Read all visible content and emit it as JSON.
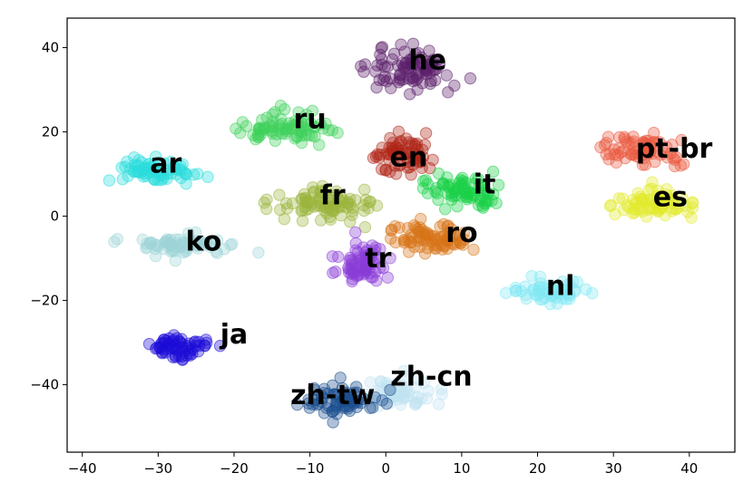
{
  "chart_data": {
    "type": "scatter",
    "title": "",
    "xlabel": "",
    "ylabel": "",
    "xlim": [
      -42,
      46
    ],
    "ylim": [
      -56,
      47
    ],
    "xticks": [
      -40,
      -30,
      -20,
      -10,
      0,
      10,
      20,
      30,
      40
    ],
    "yticks": [
      -40,
      -20,
      0,
      20,
      40
    ],
    "xtick_labels": [
      "−40",
      "−30",
      "−20",
      "−10",
      "0",
      "10",
      "20",
      "30",
      "40"
    ],
    "ytick_labels": [
      "−40",
      "−20",
      "0",
      "20",
      "40"
    ],
    "grid": false,
    "legend": "none",
    "marker_alpha": 0.35,
    "clusters": [
      {
        "label": "he",
        "color": "#5b1f6b",
        "label_x": 5.5,
        "label_y": 37,
        "center": [
          3,
          35
        ],
        "spread": [
          5,
          4
        ],
        "count": 90
      },
      {
        "label": "ru",
        "color": "#3fd25b",
        "label_x": -10,
        "label_y": 23,
        "center": [
          -13,
          21
        ],
        "spread": [
          5.5,
          3.2
        ],
        "count": 80
      },
      {
        "label": "en",
        "color": "#b02418",
        "label_x": 3,
        "label_y": 14,
        "center": [
          2,
          14
        ],
        "spread": [
          3.5,
          4
        ],
        "count": 70
      },
      {
        "label": "ar",
        "color": "#2bdddd",
        "label_x": -29,
        "label_y": 12.5,
        "center": [
          -31,
          11
        ],
        "spread": [
          5,
          2.2
        ],
        "count": 70
      },
      {
        "label": "pt-br",
        "color": "#ea5a40",
        "label_x": 38,
        "label_y": 16,
        "center": [
          34,
          16
        ],
        "spread": [
          4.5,
          3
        ],
        "count": 70
      },
      {
        "label": "it",
        "color": "#19d149",
        "label_x": 13,
        "label_y": 7.5,
        "center": [
          10,
          6
        ],
        "spread": [
          5,
          3
        ],
        "count": 75
      },
      {
        "label": "fr",
        "color": "#9ab43c",
        "label_x": -7,
        "label_y": 5,
        "center": [
          -8,
          3
        ],
        "spread": [
          6,
          3
        ],
        "count": 90
      },
      {
        "label": "es",
        "color": "#e2ea2b",
        "label_x": 37.5,
        "label_y": 4.5,
        "center": [
          36,
          3
        ],
        "spread": [
          4,
          3
        ],
        "count": 80
      },
      {
        "label": "ko",
        "color": "#9fd5d8",
        "label_x": -24,
        "label_y": -6,
        "center": [
          -27,
          -7
        ],
        "spread": [
          5.5,
          2
        ],
        "count": 70
      },
      {
        "label": "ro",
        "color": "#d87418",
        "label_x": 10,
        "label_y": -4,
        "center": [
          6,
          -5
        ],
        "spread": [
          4,
          3.5
        ],
        "count": 80
      },
      {
        "label": "tr",
        "color": "#8a3dd8",
        "label_x": -1,
        "label_y": -10,
        "center": [
          -3,
          -11
        ],
        "spread": [
          3,
          4
        ],
        "count": 75
      },
      {
        "label": "nl",
        "color": "#80e8f4",
        "label_x": 23,
        "label_y": -16.5,
        "center": [
          22,
          -18
        ],
        "spread": [
          4,
          2.4
        ],
        "count": 60
      },
      {
        "label": "ja",
        "color": "#1c0cd8",
        "label_x": -20,
        "label_y": -28,
        "center": [
          -27,
          -31
        ],
        "spread": [
          4,
          2.5
        ],
        "count": 65
      },
      {
        "label": "zh-cn",
        "color": "#bfe3f2",
        "label_x": 6,
        "label_y": -38,
        "center": [
          2,
          -42
        ],
        "spread": [
          4,
          3.5
        ],
        "count": 55
      },
      {
        "label": "zh-tw",
        "color": "#1a4e8e",
        "label_x": -7,
        "label_y": -42.5,
        "center": [
          -6,
          -44
        ],
        "spread": [
          4.5,
          3
        ],
        "count": 70
      }
    ]
  }
}
